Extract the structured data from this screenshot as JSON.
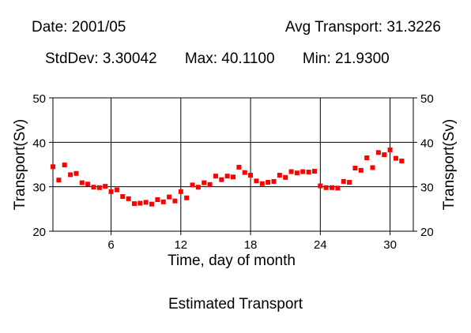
{
  "header": {
    "date_label": "Date: 2001/05",
    "avg_label": "Avg Transport: 31.3226",
    "stddev_label": "StdDev: 3.30042",
    "max_label": "Max: 40.1100",
    "min_label": "Min: 21.9300"
  },
  "footer": {
    "caption": "Estimated Transport"
  },
  "colors": {
    "points": "#ff0000",
    "axes": "#000000"
  },
  "chart_data": {
    "type": "scatter",
    "title": "",
    "xlabel": "Time, day of month",
    "ylabel": "Transport(Sv)",
    "xlim": [
      1,
      32
    ],
    "ylim": [
      20,
      50
    ],
    "xticks": [
      6,
      12,
      18,
      24,
      30
    ],
    "yticks": [
      20,
      30,
      40,
      50
    ],
    "grid": true,
    "series": [
      {
        "x": [
          1.0,
          1.5,
          2.0,
          2.5,
          3.0,
          3.5,
          4.0,
          4.5,
          5.0,
          5.5,
          6.0,
          6.5,
          7.0,
          7.5,
          8.0,
          8.5,
          9.0,
          9.5,
          10.0,
          10.5,
          11.0,
          11.5,
          12.0,
          12.5,
          13.0,
          13.5,
          14.0,
          14.5,
          15.0,
          15.5,
          16.0,
          16.5,
          17.0,
          17.5,
          18.0,
          18.5,
          19.0,
          19.5,
          20.0,
          20.5,
          21.0,
          21.5,
          22.0,
          22.5,
          23.0,
          23.5,
          24.0,
          24.5,
          25.0,
          25.5,
          26.0,
          26.5,
          27.0,
          27.5,
          28.0,
          28.5,
          29.0,
          29.5,
          30.0,
          30.5,
          31.0
        ],
        "y": [
          34.5,
          31.5,
          34.9,
          32.7,
          33.0,
          30.9,
          30.6,
          29.9,
          29.8,
          30.1,
          28.9,
          29.3,
          27.8,
          27.3,
          26.2,
          26.3,
          26.5,
          26.1,
          27.1,
          26.6,
          27.7,
          26.8,
          28.9,
          27.5,
          30.4,
          29.9,
          30.9,
          30.5,
          32.4,
          31.6,
          32.4,
          32.2,
          34.4,
          33.2,
          32.6,
          31.3,
          30.7,
          31.0,
          31.2,
          32.6,
          32.1,
          33.4,
          33.1,
          33.4,
          33.3,
          33.5,
          30.2,
          29.8,
          29.8,
          29.7,
          31.2,
          31.0,
          34.2,
          33.7,
          36.5,
          34.3,
          37.7,
          37.2,
          38.3,
          36.4,
          35.8
        ]
      }
    ]
  }
}
